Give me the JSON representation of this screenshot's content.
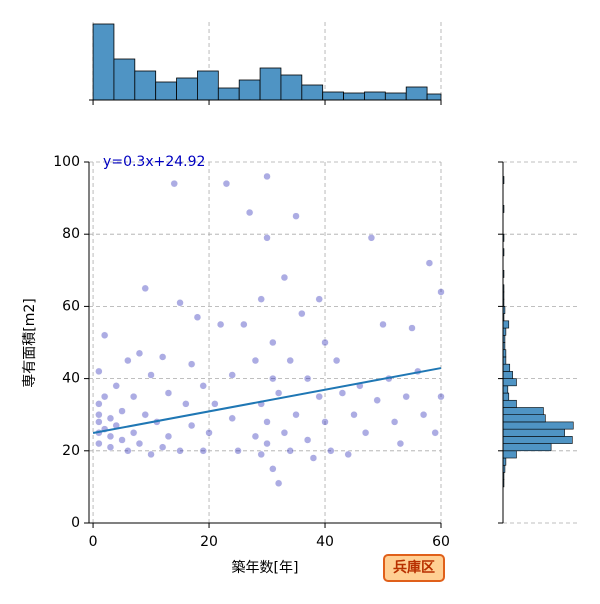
{
  "chart_data": [
    {
      "type": "scatter",
      "xlabel": "築年数[年]",
      "ylabel": "専有面積[m2]",
      "annotation": "y=0.3x+24.92",
      "color": "#1010b0",
      "line_color": "#1f77b4",
      "annotation_color": "#0000c0",
      "regression": {
        "slope": 0.3,
        "intercept": 24.92
      },
      "xlim": [
        -0.7,
        60
      ],
      "ylim": [
        0,
        100
      ],
      "xticks": [
        0,
        20,
        40,
        60
      ],
      "yticks": [
        0,
        20,
        40,
        60,
        80,
        100
      ],
      "grid": true,
      "x": [
        1,
        1,
        1,
        1,
        1,
        1,
        2,
        2,
        2,
        3,
        3,
        3,
        4,
        4,
        5,
        5,
        6,
        6,
        7,
        7,
        8,
        8,
        9,
        9,
        10,
        10,
        11,
        12,
        12,
        13,
        13,
        14,
        15,
        15,
        16,
        17,
        17,
        18,
        19,
        19,
        20,
        21,
        22,
        23,
        24,
        24,
        25,
        26,
        27,
        28,
        28,
        29,
        29,
        29,
        30,
        30,
        30,
        30,
        31,
        31,
        31,
        32,
        32,
        33,
        33,
        34,
        34,
        35,
        35,
        36,
        37,
        37,
        38,
        39,
        39,
        40,
        40,
        41,
        42,
        43,
        44,
        45,
        46,
        47,
        48,
        49,
        50,
        51,
        52,
        53,
        54,
        55,
        56,
        57,
        58,
        59,
        60,
        60
      ],
      "y": [
        22,
        25,
        28,
        30,
        33,
        42,
        26,
        35,
        52,
        21,
        24,
        29,
        27,
        38,
        23,
        31,
        45,
        20,
        25,
        35,
        22,
        47,
        65,
        30,
        19,
        41,
        28,
        46,
        21,
        36,
        24,
        94,
        20,
        61,
        33,
        27,
        44,
        57,
        20,
        38,
        25,
        33,
        55,
        94,
        29,
        41,
        20,
        55,
        86,
        24,
        45,
        33,
        19,
        62,
        96,
        79,
        28,
        22,
        40,
        15,
        50,
        11,
        36,
        25,
        68,
        20,
        45,
        30,
        85,
        58,
        23,
        40,
        18,
        35,
        62,
        28,
        50,
        20,
        45,
        36,
        19,
        30,
        38,
        25,
        79,
        34,
        55,
        40,
        28,
        22,
        35,
        54,
        42,
        30,
        72,
        25,
        64,
        35
      ]
    },
    {
      "type": "histogram",
      "color": "#4f94c4",
      "bins": [
        0,
        3.6,
        7.2,
        10.8,
        14.4,
        18,
        21.6,
        25.2,
        28.8,
        32.4,
        36,
        39.6,
        43.2,
        46.8,
        50.4,
        54,
        57.6,
        61.2
      ],
      "counts": [
        76,
        41,
        29,
        18,
        22,
        29,
        12,
        20,
        32,
        25,
        15,
        8,
        7,
        8,
        7,
        13,
        6
      ],
      "ylim": [
        0,
        78
      ]
    },
    {
      "type": "histogram",
      "orientation": "horizontal",
      "color": "#4f94c4",
      "bins": [
        10,
        12,
        14,
        16,
        18,
        20,
        22,
        24,
        26,
        28,
        30,
        32,
        34,
        36,
        38,
        40,
        42,
        44,
        46,
        48,
        50,
        52,
        54,
        56,
        58,
        60,
        62,
        64,
        66,
        68,
        70,
        72,
        74,
        76,
        78,
        80,
        82,
        84,
        86,
        88,
        90,
        92,
        94,
        96
      ],
      "counts": [
        1,
        1,
        2,
        3,
        14,
        50,
        72,
        64,
        73,
        44,
        42,
        14,
        6,
        5,
        14,
        10,
        7,
        3,
        3,
        2,
        2,
        3,
        6,
        1,
        2,
        1,
        1,
        1,
        0,
        1,
        0,
        0,
        1,
        0,
        1,
        0,
        0,
        0,
        1,
        0,
        0,
        0,
        1
      ],
      "xlim": [
        0,
        80
      ]
    }
  ],
  "badge": "兵庫区"
}
